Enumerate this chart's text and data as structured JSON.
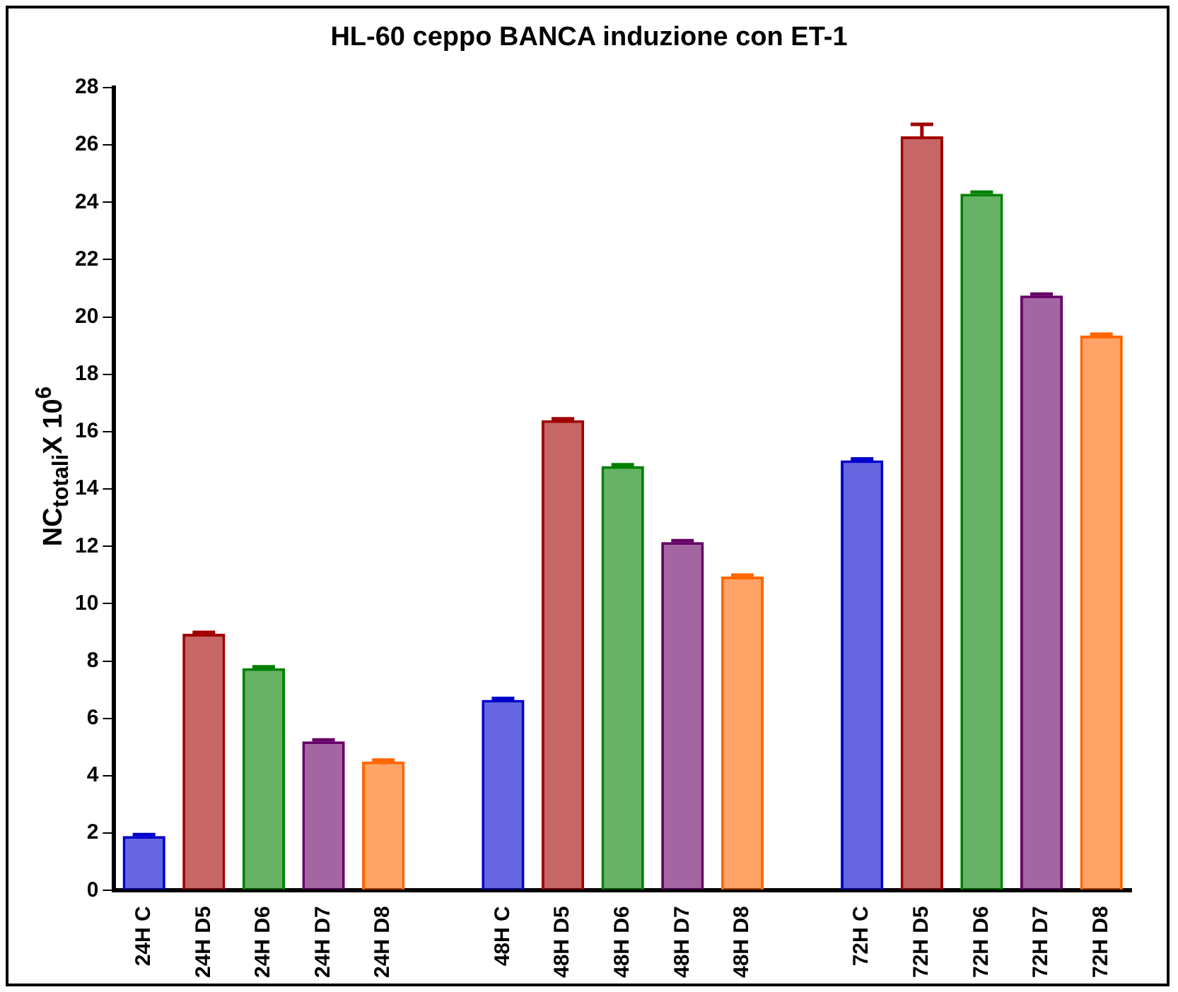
{
  "chart_data": {
    "type": "bar",
    "title": "HL-60 ceppo BANCA  induzione con ET-1",
    "ylabel": "NC$_{totali}$X 10$^{6}$",
    "categories": [
      "24H C",
      "24H D5",
      "24H D6",
      "24H D7",
      "24H D8",
      null,
      "48H C",
      "48H D5",
      "48H D6",
      "48H D7",
      "48H D8",
      null,
      "72H C",
      "72H D5",
      "72H D6",
      "72H D7",
      "72H D8"
    ],
    "values": [
      1.9,
      8.95,
      7.75,
      5.2,
      4.5,
      null,
      6.65,
      16.4,
      14.8,
      12.15,
      10.95,
      null,
      15.0,
      26.3,
      24.3,
      20.75,
      19.35
    ],
    "errors": [
      0.05,
      0.05,
      0.05,
      0.05,
      0.05,
      null,
      0.05,
      0.05,
      0.05,
      0.05,
      0.05,
      null,
      0.05,
      0.42,
      0.05,
      0.05,
      0.05
    ],
    "colors": [
      "#0000cc",
      "#a00000",
      "#008000",
      "#660066",
      "#ff6600",
      null,
      "#0000cc",
      "#a00000",
      "#008000",
      "#660066",
      "#ff6600",
      null,
      "#0000cc",
      "#a00000",
      "#008000",
      "#660066",
      "#ff6600"
    ],
    "ylim": [
      0,
      28
    ],
    "yticks": [
      0,
      2,
      4,
      6,
      8,
      10,
      12,
      14,
      16,
      18,
      20,
      22,
      24,
      26,
      28
    ],
    "grid": false,
    "legend": false
  }
}
